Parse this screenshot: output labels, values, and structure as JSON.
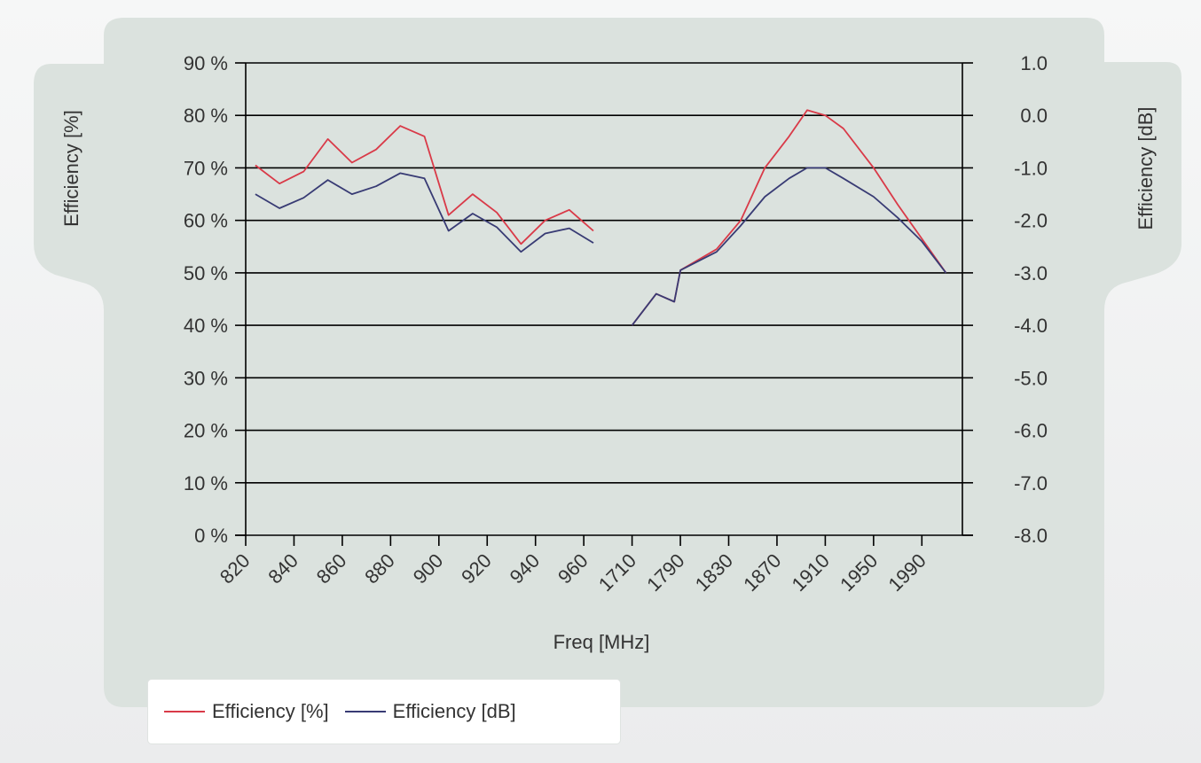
{
  "chart_data": {
    "type": "line",
    "xlabel": "Freq [MHz]",
    "ylabel_left": "Efficiency [%]",
    "ylabel_right": "Efficiency [dB]",
    "x_tick_labels": [
      "820",
      "840",
      "860",
      "880",
      "900",
      "920",
      "940",
      "960",
      "1710",
      "1790",
      "1830",
      "1870",
      "1910",
      "1950",
      "1990"
    ],
    "y_left": {
      "min": 0,
      "max": 90,
      "step": 10,
      "tick_labels": [
        "0 %",
        "10 %",
        "20 %",
        "30 %",
        "40 %",
        "50 %",
        "60 %",
        "70 %",
        "80 %",
        "90 %"
      ]
    },
    "y_right": {
      "min": -8.0,
      "max": 1.0,
      "step": 1.0,
      "tick_labels": [
        "-8.0",
        "-7.0",
        "-6.0",
        "-5.0",
        "-4.0",
        "-3.0",
        "-2.0",
        "-1.0",
        "0.0",
        "1.0"
      ]
    },
    "grid": "horizontal",
    "legend_placement": "bottom-left",
    "series": [
      {
        "name": "Efficiency [%]",
        "axis": "left",
        "color": "#d93a48",
        "segments": [
          [
            [
              824,
              70.5
            ],
            [
              834,
              67
            ],
            [
              844,
              69.3
            ],
            [
              854,
              75.5
            ],
            [
              864,
              71
            ],
            [
              874,
              73.5
            ],
            [
              884,
              78
            ],
            [
              894,
              76
            ],
            [
              904,
              61
            ],
            [
              914,
              65
            ],
            [
              924,
              61.5
            ],
            [
              934,
              55.5
            ],
            [
              944,
              60
            ],
            [
              954,
              62
            ],
            [
              964,
              58
            ]
          ],
          [
            [
              1710,
              40
            ],
            [
              1750,
              46
            ],
            [
              1780,
              44.5
            ],
            [
              1790,
              50.5
            ],
            [
              1820,
              54.5
            ],
            [
              1840,
              60
            ],
            [
              1860,
              70
            ],
            [
              1880,
              76
            ],
            [
              1895,
              81
            ],
            [
              1910,
              80
            ],
            [
              1925,
              77.5
            ],
            [
              1950,
              70
            ],
            [
              1970,
              63
            ],
            [
              1990,
              56.5
            ],
            [
              2010,
              50
            ]
          ]
        ]
      },
      {
        "name": "Efficiency [dB]",
        "axis": "right",
        "color": "#383b74",
        "segments": [
          [
            [
              824,
              -1.5
            ],
            [
              834,
              -1.77
            ],
            [
              844,
              -1.57
            ],
            [
              854,
              -1.23
            ],
            [
              864,
              -1.5
            ],
            [
              874,
              -1.35
            ],
            [
              884,
              -1.1
            ],
            [
              894,
              -1.2
            ],
            [
              904,
              -2.2
            ],
            [
              914,
              -1.87
            ],
            [
              924,
              -2.13
            ],
            [
              934,
              -2.6
            ],
            [
              944,
              -2.25
            ],
            [
              954,
              -2.15
            ],
            [
              964,
              -2.43
            ]
          ],
          [
            [
              1710,
              -4.0
            ],
            [
              1750,
              -3.4
            ],
            [
              1780,
              -3.55
            ],
            [
              1790,
              -2.95
            ],
            [
              1820,
              -2.6
            ],
            [
              1840,
              -2.1
            ],
            [
              1860,
              -1.55
            ],
            [
              1880,
              -1.2
            ],
            [
              1895,
              -1.0
            ],
            [
              1910,
              -1.0
            ],
            [
              1925,
              -1.2
            ],
            [
              1950,
              -1.55
            ],
            [
              1970,
              -1.95
            ],
            [
              1990,
              -2.4
            ],
            [
              2010,
              -3.0
            ]
          ]
        ]
      }
    ]
  },
  "legend": [
    {
      "label": "Efficiency [%]",
      "color": "#d93a48"
    },
    {
      "label": "Efficiency [dB]",
      "color": "#383b74"
    }
  ],
  "colors": {
    "panel": "#dbe2de",
    "grid": "#000000",
    "text": "#333333"
  }
}
